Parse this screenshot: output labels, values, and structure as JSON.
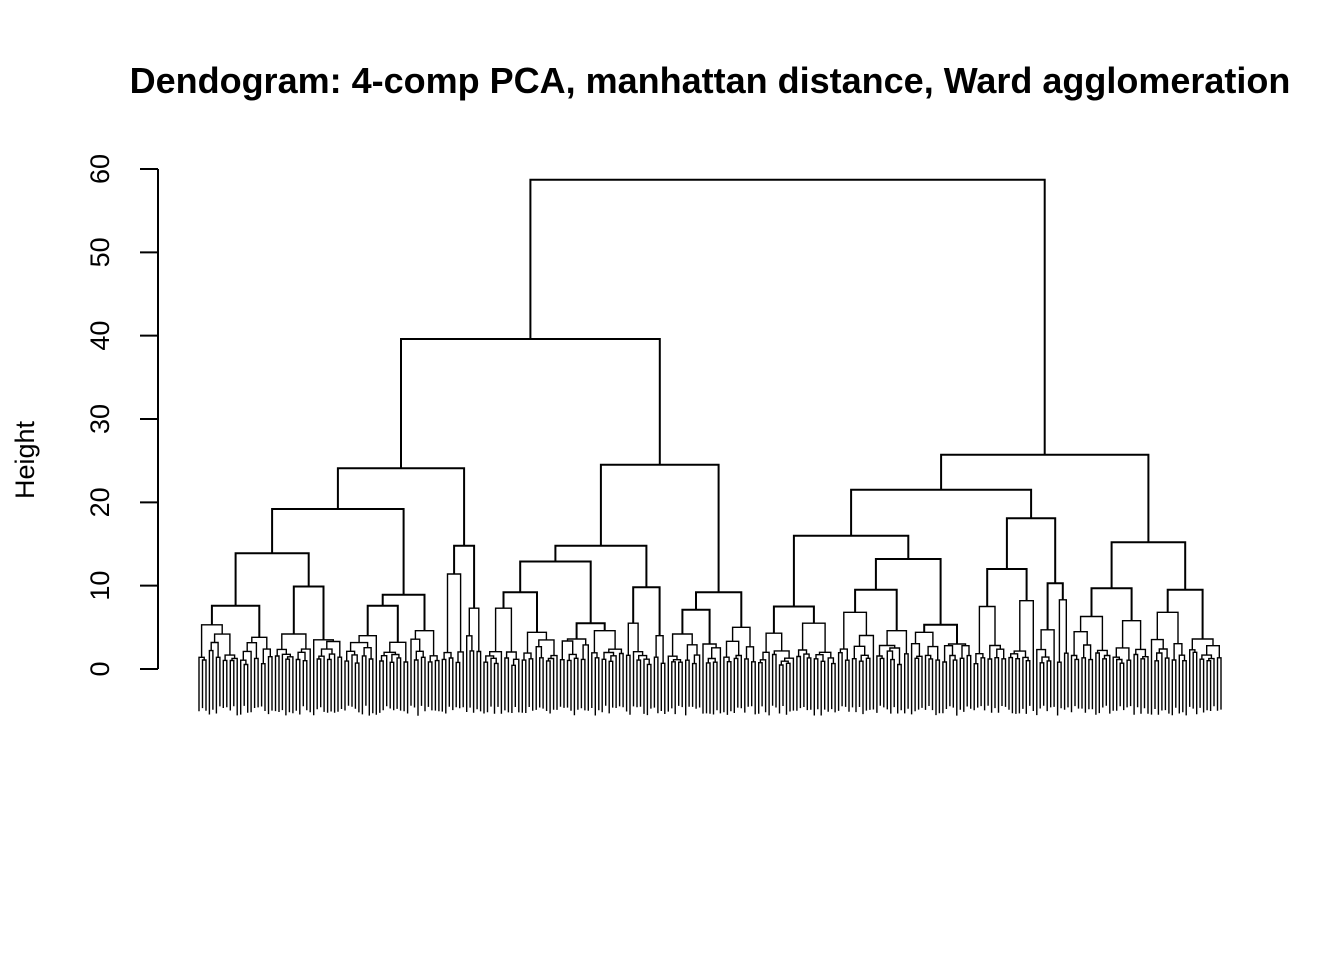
{
  "chart_data": {
    "type": "dendrogram",
    "title": "Dendogram: 4-comp PCA, manhattan distance, Ward agglomeration",
    "ylabel": "Height",
    "xlabel": "",
    "ylim": [
      0,
      60
    ],
    "yticks": [
      "0",
      "10",
      "20",
      "30",
      "40",
      "50",
      "60"
    ],
    "grid": false,
    "leaf_labels_visible": false,
    "leaf_count_estimate": 392,
    "tree": {
      "h": 58.7,
      "c": [
        {
          "h": 39.6,
          "c": [
            {
              "h": 24.1,
              "c": [
                {
                  "h": 19.2,
                  "c": [
                    {
                      "h": 13.9,
                      "c": [
                        {
                          "h": 7.6,
                          "c": [
                            {
                              "h": 5.3,
                              "n": 12
                            },
                            {
                              "h": 3.8,
                              "n": 10
                            }
                          ]
                        },
                        {
                          "h": 9.9,
                          "c": [
                            {
                              "h": 4.2,
                              "n": 11
                            },
                            {
                              "h": 3.5,
                              "n": 9
                            }
                          ]
                        }
                      ]
                    },
                    {
                      "h": 8.9,
                      "c": [
                        {
                          "h": 7.6,
                          "c": [
                            {
                              "h": 4.0,
                              "n": 10
                            },
                            {
                              "h": 3.2,
                              "n": 9
                            }
                          ]
                        },
                        {
                          "h": 4.6,
                          "n": 9
                        }
                      ]
                    }
                  ]
                },
                {
                  "h": 14.8,
                  "c": [
                    {
                      "h": 11.4,
                      "n": 7
                    },
                    {
                      "h": 7.3,
                      "n": 5
                    }
                  ]
                }
              ]
            },
            {
              "h": 24.5,
              "c": [
                {
                  "h": 14.8,
                  "c": [
                    {
                      "h": 12.9,
                      "c": [
                        {
                          "h": 9.2,
                          "c": [
                            {
                              "h": 7.3,
                              "n": 11
                            },
                            {
                              "h": 4.4,
                              "n": 11
                            }
                          ]
                        },
                        {
                          "h": 5.5,
                          "c": [
                            {
                              "h": 3.6,
                              "n": 9
                            },
                            {
                              "h": 4.6,
                              "n": 10
                            }
                          ]
                        }
                      ]
                    },
                    {
                      "h": 9.8,
                      "c": [
                        {
                          "h": 5.5,
                          "n": 8
                        },
                        {
                          "h": 4.0,
                          "n": 4
                        }
                      ]
                    }
                  ]
                },
                {
                  "h": 9.2,
                  "c": [
                    {
                      "h": 7.1,
                      "c": [
                        {
                          "h": 4.2,
                          "n": 10
                        },
                        {
                          "h": 3.0,
                          "n": 6
                        }
                      ]
                    },
                    {
                      "h": 5.0,
                      "n": 10
                    }
                  ]
                }
              ]
            }
          ]
        },
        {
          "h": 25.7,
          "c": [
            {
              "h": 21.5,
              "c": [
                {
                  "h": 16.0,
                  "c": [
                    {
                      "h": 7.5,
                      "c": [
                        {
                          "h": 4.3,
                          "n": 11
                        },
                        {
                          "h": 5.5,
                          "n": 12
                        }
                      ]
                    },
                    {
                      "h": 13.2,
                      "c": [
                        {
                          "h": 9.5,
                          "c": [
                            {
                              "h": 6.8,
                              "n": 11
                            },
                            {
                              "h": 4.6,
                              "n": 10
                            }
                          ]
                        },
                        {
                          "h": 5.3,
                          "c": [
                            {
                              "h": 4.4,
                              "n": 9
                            },
                            {
                              "h": 3.0,
                              "n": 9
                            }
                          ]
                        }
                      ]
                    }
                  ]
                },
                {
                  "h": 18.1,
                  "c": [
                    {
                      "h": 12.0,
                      "c": [
                        {
                          "h": 7.5,
                          "n": 10
                        },
                        {
                          "h": 8.2,
                          "n": 8
                        }
                      ]
                    },
                    {
                      "h": 10.3,
                      "c": [
                        {
                          "h": 4.7,
                          "n": 6
                        },
                        {
                          "h": 8.3,
                          "n": 4
                        }
                      ]
                    }
                  ]
                }
              ]
            },
            {
              "h": 15.2,
              "c": [
                {
                  "h": 9.7,
                  "c": [
                    {
                      "h": 6.3,
                      "n": 12
                    },
                    {
                      "h": 5.8,
                      "n": 11
                    }
                  ]
                },
                {
                  "h": 9.5,
                  "c": [
                    {
                      "h": 6.8,
                      "n": 11
                    },
                    {
                      "h": 3.6,
                      "n": 10
                    }
                  ]
                }
              ]
            }
          ]
        }
      ]
    }
  }
}
